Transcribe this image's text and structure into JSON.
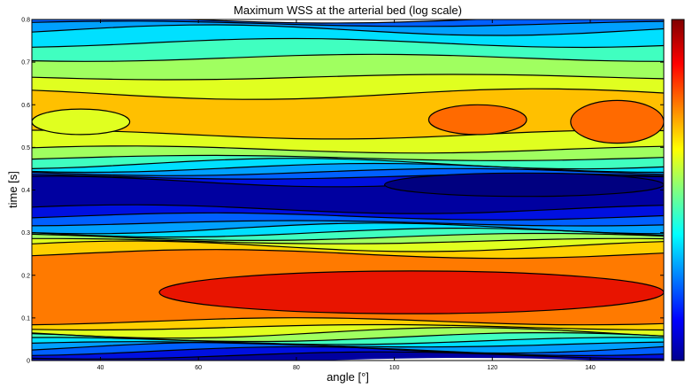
{
  "chart_data": {
    "type": "heatmap",
    "subtype": "filled contour",
    "title": "Maximum WSS at the arterial bed (log scale)",
    "xlabel": "angle [°]",
    "ylabel": "time [s]",
    "xlim": [
      26,
      155
    ],
    "ylim": [
      0,
      0.8
    ],
    "x_ticks": [
      40,
      60,
      80,
      100,
      120,
      140
    ],
    "y_ticks": [
      0,
      0.1,
      0.2,
      0.3,
      0.4,
      0.5,
      0.6,
      0.7,
      0.8
    ],
    "colormap": "jet",
    "colorbar": "right",
    "grid": false,
    "bands": [
      {
        "y": [
          0.0,
          0.012
        ],
        "color": "#0000a0"
      },
      {
        "y": [
          0.012,
          0.022
        ],
        "color": "#0010e0"
      },
      {
        "y": [
          0.022,
          0.03
        ],
        "color": "#0060ff"
      },
      {
        "y": [
          0.03,
          0.038
        ],
        "color": "#00a0ff"
      },
      {
        "y": [
          0.038,
          0.046
        ],
        "color": "#00e0ff"
      },
      {
        "y": [
          0.046,
          0.055
        ],
        "color": "#40ffc0"
      },
      {
        "y": [
          0.055,
          0.065
        ],
        "color": "#a0ff60"
      },
      {
        "y": [
          0.065,
          0.078
        ],
        "color": "#e0ff20"
      },
      {
        "y": [
          0.078,
          0.092
        ],
        "color": "#ffd000"
      },
      {
        "y": [
          0.092,
          0.25
        ],
        "color": "#ff7a00"
      },
      {
        "y": [
          0.25,
          0.268
        ],
        "color": "#ffd000"
      },
      {
        "y": [
          0.268,
          0.28
        ],
        "color": "#e0ff20"
      },
      {
        "y": [
          0.28,
          0.29
        ],
        "color": "#a0ff60"
      },
      {
        "y": [
          0.29,
          0.3
        ],
        "color": "#40ffc0"
      },
      {
        "y": [
          0.3,
          0.31
        ],
        "color": "#00e0ff"
      },
      {
        "y": [
          0.31,
          0.322
        ],
        "color": "#00a0ff"
      },
      {
        "y": [
          0.322,
          0.338
        ],
        "color": "#0060ff"
      },
      {
        "y": [
          0.338,
          0.355
        ],
        "color": "#0010e0"
      },
      {
        "y": [
          0.355,
          0.42
        ],
        "color": "#0000a0"
      },
      {
        "y": [
          0.42,
          0.432
        ],
        "color": "#0010e0"
      },
      {
        "y": [
          0.432,
          0.442
        ],
        "color": "#0060ff"
      },
      {
        "y": [
          0.442,
          0.452
        ],
        "color": "#00a0ff"
      },
      {
        "y": [
          0.452,
          0.462
        ],
        "color": "#00e0ff"
      },
      {
        "y": [
          0.462,
          0.475
        ],
        "color": "#40ffc0"
      },
      {
        "y": [
          0.475,
          0.495
        ],
        "color": "#a0ff60"
      },
      {
        "y": [
          0.495,
          0.53
        ],
        "color": "#e0ff20"
      },
      {
        "y": [
          0.53,
          0.625
        ],
        "color": "#ffc000"
      },
      {
        "y": [
          0.625,
          0.665
        ],
        "color": "#e0ff20"
      },
      {
        "y": [
          0.665,
          0.71
        ],
        "color": "#a0ff60"
      },
      {
        "y": [
          0.71,
          0.745
        ],
        "color": "#40ffc0"
      },
      {
        "y": [
          0.745,
          0.775
        ],
        "color": "#00e0ff"
      },
      {
        "y": [
          0.775,
          0.79
        ],
        "color": "#00a0ff"
      },
      {
        "y": [
          0.79,
          0.8
        ],
        "color": "#0060ff"
      }
    ],
    "regions": [
      {
        "label": "high WSS core (lower)",
        "x": [
          52,
          155
        ],
        "y": [
          0.11,
          0.21
        ],
        "color": "#e81400"
      },
      {
        "label": "high WSS patch (upper middle)",
        "x": [
          107,
          127
        ],
        "y": [
          0.53,
          0.6
        ],
        "color": "#ff6a00"
      },
      {
        "label": "high WSS patch (upper right)",
        "x": [
          136,
          155
        ],
        "y": [
          0.51,
          0.61
        ],
        "color": "#ff6a00"
      },
      {
        "label": "low WSS patch (upper left)",
        "x": [
          26,
          46
        ],
        "y": [
          0.53,
          0.59
        ],
        "color": "#e0ff20"
      },
      {
        "label": "min WSS streak",
        "x": [
          98,
          155
        ],
        "y": [
          0.385,
          0.44
        ],
        "color": "#000080"
      }
    ]
  }
}
